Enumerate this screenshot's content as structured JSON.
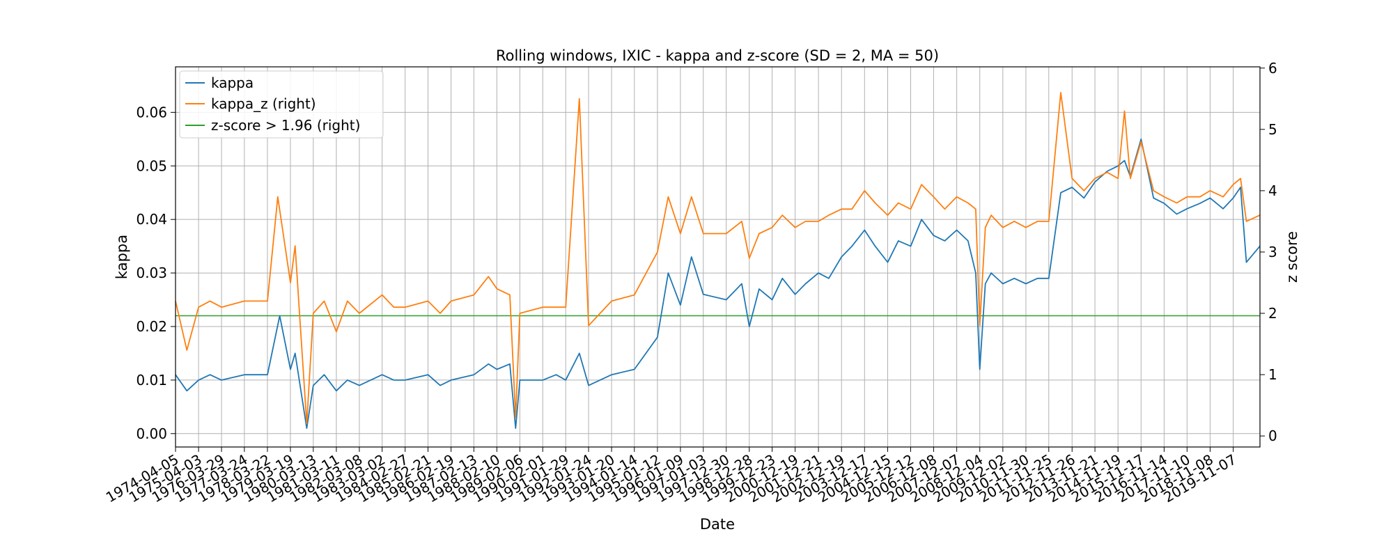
{
  "chart_data": {
    "type": "line",
    "title": "Rolling windows, IXIC - kappa and z-score (SD = 2, MA = 50)",
    "xlabel": "Date",
    "ylabel": "kappa",
    "y2label": "z score",
    "xlim": [
      "1974-04-05",
      "2021-01-01"
    ],
    "ylim": [
      -0.0025,
      0.0685
    ],
    "y2lim": [
      -0.18,
      6.02
    ],
    "y_ticks": [
      "0.00",
      "0.01",
      "0.02",
      "0.03",
      "0.04",
      "0.05",
      "0.06"
    ],
    "y2_ticks": [
      "0",
      "1",
      "2",
      "3",
      "4",
      "5",
      "6"
    ],
    "x_ticks": [
      "1974-04-05",
      "1975-04-03",
      "1976-03-29",
      "1977-03-24",
      "1978-03-22",
      "1979-03-19",
      "1980-03-13",
      "1981-03-11",
      "1982-03-08",
      "1983-03-02",
      "1984-02-27",
      "1985-02-21",
      "1986-02-19",
      "1987-02-13",
      "1988-02-10",
      "1989-02-06",
      "1990-02-01",
      "1991-01-29",
      "1992-01-24",
      "1993-01-20",
      "1994-01-14",
      "1995-01-12",
      "1996-01-09",
      "1997-01-03",
      "1997-12-30",
      "1998-12-28",
      "1999-12-23",
      "2000-12-19",
      "2001-12-21",
      "2002-12-19",
      "2003-12-17",
      "2004-12-15",
      "2005-12-12",
      "2006-12-08",
      "2007-12-07",
      "2008-12-04",
      "2009-12-02",
      "2010-11-30",
      "2011-11-25",
      "2012-11-26",
      "2013-11-21",
      "2014-11-19",
      "2015-11-17",
      "2016-11-14",
      "2017-11-10",
      "2018-11-08",
      "2019-11-07"
    ],
    "grid": true,
    "legend_position": "top-left",
    "threshold": 1.96,
    "series": [
      {
        "name": "kappa",
        "axis": "left",
        "color": "#1f77b4",
        "x": [
          "1974-04-05",
          "1974-10-01",
          "1975-04-03",
          "1975-10-01",
          "1976-03-29",
          "1977-03-24",
          "1978-03-22",
          "1978-10-01",
          "1979-03-19",
          "1979-06-01",
          "1979-12-01",
          "1980-03-13",
          "1980-09-01",
          "1981-03-11",
          "1981-09-01",
          "1982-03-08",
          "1983-03-02",
          "1983-09-01",
          "1984-02-27",
          "1985-02-21",
          "1985-09-01",
          "1986-02-19",
          "1987-02-13",
          "1987-10-01",
          "1988-02-10",
          "1988-09-01",
          "1988-12-01",
          "1989-02-06",
          "1990-02-01",
          "1990-09-01",
          "1991-01-29",
          "1991-09-01",
          "1992-01-24",
          "1993-01-20",
          "1994-01-14",
          "1995-01-12",
          "1995-07-01",
          "1996-01-09",
          "1996-07-01",
          "1997-01-03",
          "1997-12-30",
          "1998-09-01",
          "1998-12-28",
          "1999-06-01",
          "1999-12-23",
          "2000-06-01",
          "2000-12-19",
          "2001-06-01",
          "2001-12-21",
          "2002-06-01",
          "2002-12-19",
          "2003-06-01",
          "2003-12-17",
          "2004-06-01",
          "2004-12-15",
          "2005-06-01",
          "2005-12-12",
          "2006-06-01",
          "2006-12-08",
          "2007-06-01",
          "2007-12-07",
          "2008-06-01",
          "2008-10-01",
          "2008-12-04",
          "2009-03-01",
          "2009-06-01",
          "2009-12-02",
          "2010-06-01",
          "2010-11-30",
          "2011-06-01",
          "2011-11-25",
          "2012-06-01",
          "2012-11-26",
          "2013-06-01",
          "2013-11-21",
          "2014-06-01",
          "2014-11-19",
          "2015-03-01",
          "2015-06-01",
          "2015-11-17",
          "2016-06-01",
          "2016-11-14",
          "2017-06-01",
          "2017-11-10",
          "2018-06-01",
          "2018-11-08",
          "2019-06-01",
          "2019-11-07",
          "2020-03-01",
          "2020-06-01",
          "2020-12-31"
        ],
        "y": [
          0.011,
          0.008,
          0.01,
          0.011,
          0.01,
          0.011,
          0.011,
          0.022,
          0.012,
          0.015,
          0.001,
          0.009,
          0.011,
          0.008,
          0.01,
          0.009,
          0.011,
          0.01,
          0.01,
          0.011,
          0.009,
          0.01,
          0.011,
          0.013,
          0.012,
          0.013,
          0.001,
          0.01,
          0.01,
          0.011,
          0.01,
          0.015,
          0.009,
          0.011,
          0.012,
          0.018,
          0.03,
          0.024,
          0.033,
          0.026,
          0.025,
          0.028,
          0.02,
          0.027,
          0.025,
          0.029,
          0.026,
          0.028,
          0.03,
          0.029,
          0.033,
          0.035,
          0.038,
          0.035,
          0.032,
          0.036,
          0.035,
          0.04,
          0.037,
          0.036,
          0.038,
          0.036,
          0.03,
          0.012,
          0.028,
          0.03,
          0.028,
          0.029,
          0.028,
          0.029,
          0.029,
          0.045,
          0.046,
          0.044,
          0.047,
          0.049,
          0.05,
          0.051,
          0.048,
          0.055,
          0.044,
          0.043,
          0.041,
          0.042,
          0.043,
          0.044,
          0.042,
          0.044,
          0.046,
          0.032,
          0.035
        ]
      },
      {
        "name": "kappa_z (right)",
        "axis": "right",
        "color": "#ff7f0e",
        "x": [
          "1974-04-05",
          "1974-10-01",
          "1975-04-03",
          "1975-10-01",
          "1976-03-29",
          "1977-03-24",
          "1978-03-22",
          "1978-09-01",
          "1979-03-19",
          "1979-06-01",
          "1979-12-01",
          "1980-03-13",
          "1980-09-01",
          "1981-03-11",
          "1981-09-01",
          "1982-03-08",
          "1983-03-02",
          "1983-09-01",
          "1984-02-27",
          "1985-02-21",
          "1985-09-01",
          "1986-02-19",
          "1987-02-13",
          "1987-10-01",
          "1988-02-10",
          "1988-09-01",
          "1988-12-01",
          "1989-02-06",
          "1990-02-01",
          "1990-09-01",
          "1991-01-29",
          "1991-09-01",
          "1992-01-24",
          "1993-01-20",
          "1994-01-14",
          "1995-01-12",
          "1995-07-01",
          "1996-01-09",
          "1996-07-01",
          "1997-01-03",
          "1997-12-30",
          "1998-09-01",
          "1998-12-28",
          "1999-06-01",
          "1999-12-23",
          "2000-06-01",
          "2000-12-19",
          "2001-06-01",
          "2001-12-21",
          "2002-06-01",
          "2002-12-19",
          "2003-06-01",
          "2003-12-17",
          "2004-06-01",
          "2004-12-15",
          "2005-06-01",
          "2005-12-12",
          "2006-06-01",
          "2006-12-08",
          "2007-06-01",
          "2007-12-07",
          "2008-06-01",
          "2008-10-01",
          "2008-12-04",
          "2009-03-01",
          "2009-06-01",
          "2009-12-02",
          "2010-06-01",
          "2010-11-30",
          "2011-06-01",
          "2011-11-25",
          "2012-06-01",
          "2012-11-26",
          "2013-06-01",
          "2013-11-21",
          "2014-06-01",
          "2014-11-19",
          "2015-03-01",
          "2015-06-01",
          "2015-11-17",
          "2016-06-01",
          "2016-11-14",
          "2017-06-01",
          "2017-11-10",
          "2018-06-01",
          "2018-11-08",
          "2019-06-01",
          "2019-11-07",
          "2020-03-01",
          "2020-06-01",
          "2020-12-31"
        ],
        "y": [
          2.2,
          1.4,
          2.1,
          2.2,
          2.1,
          2.2,
          2.2,
          3.9,
          2.5,
          3.1,
          0.2,
          2.0,
          2.2,
          1.7,
          2.2,
          2.0,
          2.3,
          2.1,
          2.1,
          2.2,
          2.0,
          2.2,
          2.3,
          2.6,
          2.4,
          2.3,
          0.3,
          2.0,
          2.1,
          2.1,
          2.1,
          5.5,
          1.8,
          2.2,
          2.3,
          3.0,
          3.9,
          3.3,
          3.9,
          3.3,
          3.3,
          3.5,
          2.9,
          3.3,
          3.4,
          3.6,
          3.4,
          3.5,
          3.5,
          3.6,
          3.7,
          3.7,
          4.0,
          3.8,
          3.6,
          3.8,
          3.7,
          4.1,
          3.9,
          3.7,
          3.9,
          3.8,
          3.7,
          1.8,
          3.4,
          3.6,
          3.4,
          3.5,
          3.4,
          3.5,
          3.5,
          5.6,
          4.2,
          4.0,
          4.2,
          4.3,
          4.2,
          5.3,
          4.2,
          4.8,
          4.0,
          3.9,
          3.8,
          3.9,
          3.9,
          4.0,
          3.9,
          4.1,
          4.2,
          3.5,
          3.6
        ]
      },
      {
        "name": "z-score > 1.96 (right)",
        "axis": "right",
        "color": "#2ca02c",
        "x": [
          "1974-04-05",
          "2020-12-31"
        ],
        "y": [
          1.96,
          1.96
        ]
      }
    ]
  }
}
